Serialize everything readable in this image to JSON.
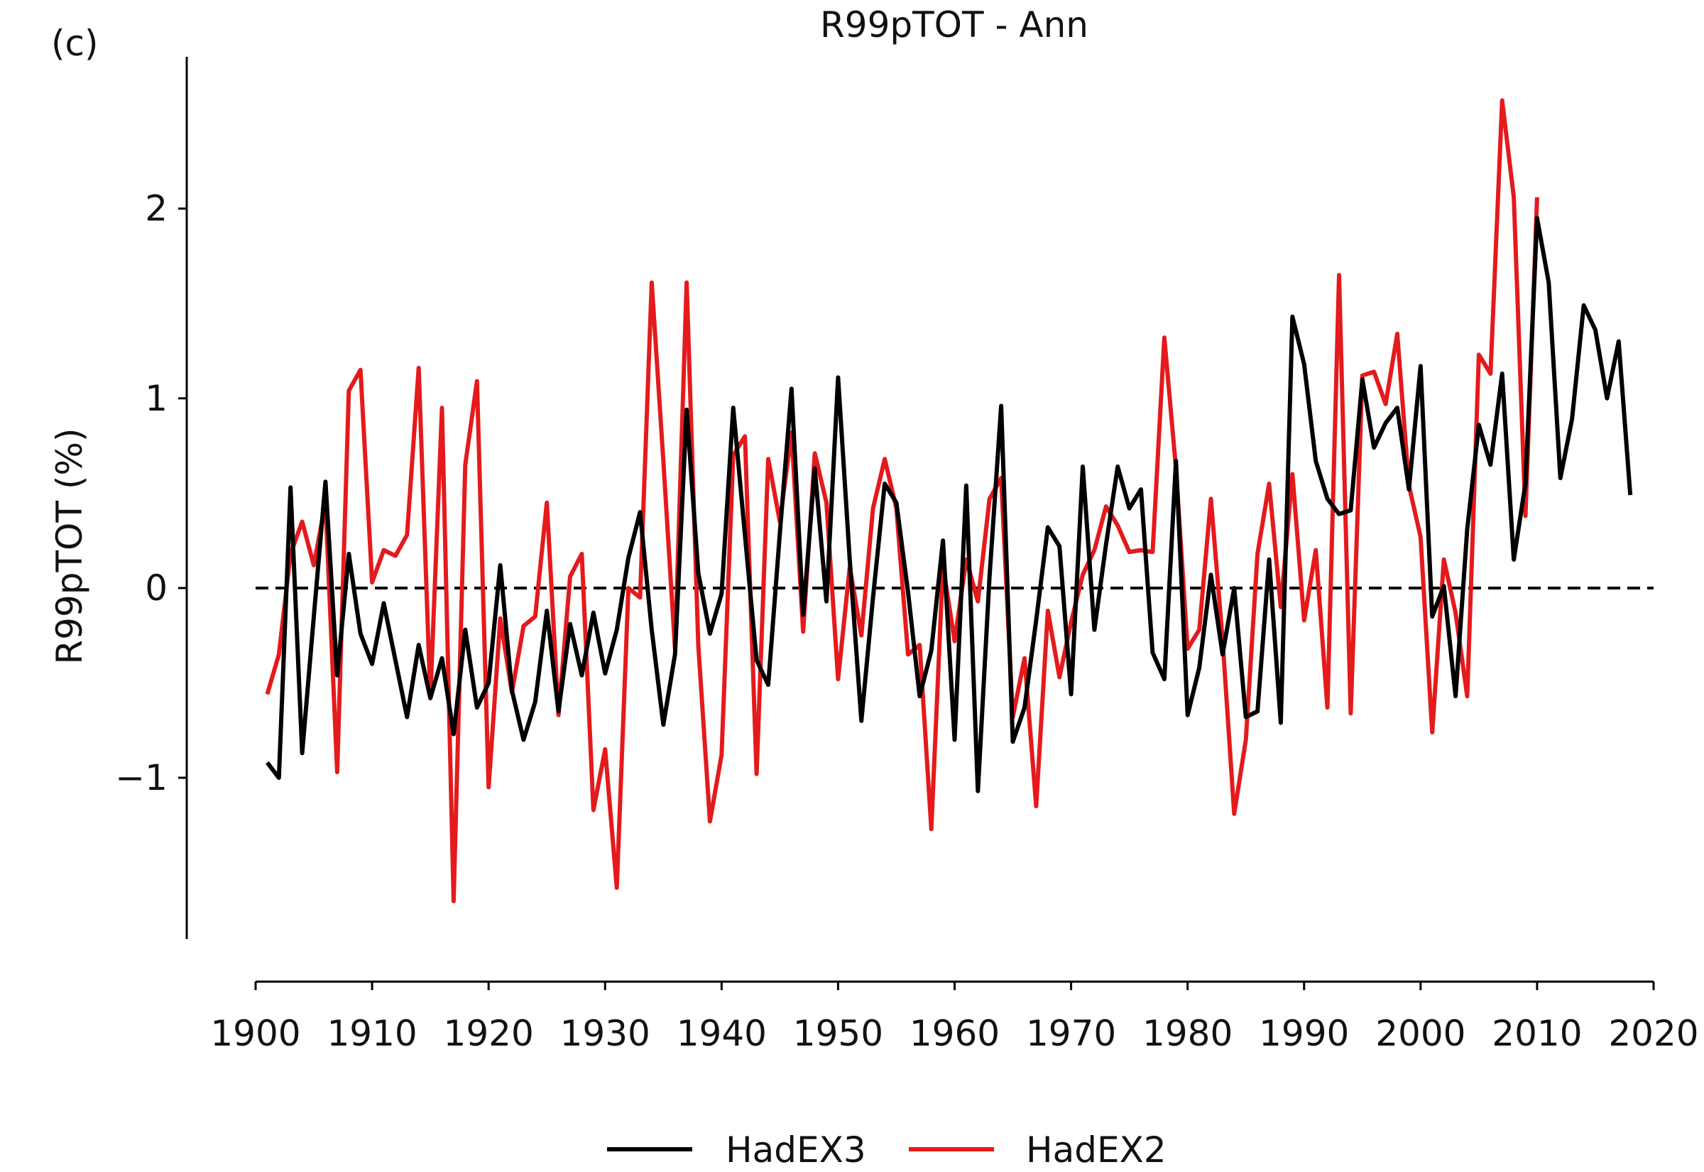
{
  "panel_label": "(c)",
  "chart_data": {
    "type": "line",
    "title": "R99pTOT - Ann",
    "xlabel": "",
    "ylabel": "R99pTOT (%)",
    "xlim": [
      1900,
      2020
    ],
    "ylim": [
      -1.85,
      2.8
    ],
    "xticks": [
      1900,
      1910,
      1920,
      1930,
      1940,
      1950,
      1960,
      1970,
      1980,
      1990,
      2000,
      2010,
      2020
    ],
    "yticks": [
      -1,
      0,
      1,
      2
    ],
    "ytick_labels": [
      "−1",
      "0",
      "1",
      "2"
    ],
    "grid": false,
    "reference_line": {
      "y": 0,
      "style": "dashed",
      "color": "#000000"
    },
    "legend_position": "bottom-center",
    "series": [
      {
        "name": "HadEX3",
        "color": "#000000",
        "x": [
          1901,
          1902,
          1903,
          1904,
          1905,
          1906,
          1907,
          1908,
          1909,
          1910,
          1911,
          1912,
          1913,
          1914,
          1915,
          1916,
          1917,
          1918,
          1919,
          1920,
          1921,
          1922,
          1923,
          1924,
          1925,
          1926,
          1927,
          1928,
          1929,
          1930,
          1931,
          1932,
          1933,
          1934,
          1935,
          1936,
          1937,
          1938,
          1939,
          1940,
          1941,
          1942,
          1943,
          1944,
          1945,
          1946,
          1947,
          1948,
          1949,
          1950,
          1951,
          1952,
          1953,
          1954,
          1955,
          1956,
          1957,
          1958,
          1959,
          1960,
          1961,
          1962,
          1963,
          1964,
          1965,
          1966,
          1967,
          1968,
          1969,
          1970,
          1971,
          1972,
          1973,
          1974,
          1975,
          1976,
          1977,
          1978,
          1979,
          1980,
          1981,
          1982,
          1983,
          1984,
          1985,
          1986,
          1987,
          1988,
          1989,
          1990,
          1991,
          1992,
          1993,
          1994,
          1995,
          1996,
          1997,
          1998,
          1999,
          2000,
          2001,
          2002,
          2003,
          2004,
          2005,
          2006,
          2007,
          2008,
          2009,
          2010,
          2011,
          2012,
          2013,
          2014,
          2015,
          2016,
          2017,
          2018
        ],
        "y": [
          -0.92,
          -1.0,
          0.53,
          -0.87,
          -0.15,
          0.56,
          -0.46,
          0.18,
          -0.24,
          -0.4,
          -0.08,
          -0.38,
          -0.68,
          -0.3,
          -0.58,
          -0.37,
          -0.77,
          -0.22,
          -0.63,
          -0.5,
          0.12,
          -0.54,
          -0.8,
          -0.6,
          -0.12,
          -0.65,
          -0.19,
          -0.46,
          -0.13,
          -0.45,
          -0.22,
          0.16,
          0.4,
          -0.22,
          -0.72,
          -0.35,
          0.94,
          0.08,
          -0.24,
          -0.03,
          0.95,
          0.28,
          -0.38,
          -0.51,
          0.29,
          1.05,
          -0.14,
          0.63,
          -0.07,
          1.11,
          0.15,
          -0.7,
          -0.05,
          0.55,
          0.45,
          -0.02,
          -0.57,
          -0.33,
          0.25,
          -0.8,
          0.54,
          -1.07,
          0.06,
          0.96,
          -0.81,
          -0.63,
          -0.17,
          0.32,
          0.22,
          -0.56,
          0.64,
          -0.22,
          0.23,
          0.64,
          0.42,
          0.52,
          -0.34,
          -0.48,
          0.67,
          -0.67,
          -0.42,
          0.07,
          -0.35,
          0.0,
          -0.68,
          -0.65,
          0.15,
          -0.71,
          1.43,
          1.18,
          0.67,
          0.47,
          0.39,
          0.41,
          1.1,
          0.74,
          0.87,
          0.95,
          0.52,
          1.17,
          -0.15,
          0.01,
          -0.57,
          0.31,
          0.86,
          0.65,
          1.13,
          0.15,
          0.55,
          1.95,
          1.61,
          0.58,
          0.89,
          1.49,
          1.36,
          1.0,
          1.3,
          0.49
        ]
      },
      {
        "name": "HadEX2",
        "color": "#e41a1c",
        "x": [
          1901,
          1902,
          1903,
          1904,
          1905,
          1906,
          1907,
          1908,
          1909,
          1910,
          1911,
          1912,
          1913,
          1914,
          1915,
          1916,
          1917,
          1918,
          1919,
          1920,
          1921,
          1922,
          1923,
          1924,
          1925,
          1926,
          1927,
          1928,
          1929,
          1930,
          1931,
          1932,
          1933,
          1934,
          1935,
          1936,
          1937,
          1938,
          1939,
          1940,
          1941,
          1942,
          1943,
          1944,
          1945,
          1946,
          1947,
          1948,
          1949,
          1950,
          1951,
          1952,
          1953,
          1954,
          1955,
          1956,
          1957,
          1958,
          1959,
          1960,
          1961,
          1962,
          1963,
          1964,
          1965,
          1966,
          1967,
          1968,
          1969,
          1970,
          1971,
          1972,
          1973,
          1974,
          1975,
          1976,
          1977,
          1978,
          1979,
          1980,
          1981,
          1982,
          1983,
          1984,
          1985,
          1986,
          1987,
          1988,
          1989,
          1990,
          1991,
          1992,
          1993,
          1994,
          1995,
          1996,
          1997,
          1998,
          1999,
          2000,
          2001,
          2002,
          2003,
          2004,
          2005,
          2006,
          2007,
          2008,
          2009,
          2010
        ],
        "y": [
          -0.56,
          -0.35,
          0.18,
          0.35,
          0.12,
          0.45,
          -0.97,
          1.04,
          1.15,
          0.03,
          0.2,
          0.17,
          0.28,
          1.16,
          -0.58,
          0.95,
          -1.65,
          0.65,
          1.09,
          -1.05,
          -0.16,
          -0.55,
          -0.2,
          -0.15,
          0.45,
          -0.67,
          0.06,
          0.18,
          -1.17,
          -0.85,
          -1.58,
          0.0,
          -0.05,
          1.61,
          0.67,
          -0.32,
          1.61,
          -0.3,
          -1.23,
          -0.88,
          0.7,
          0.8,
          -0.98,
          0.68,
          0.35,
          0.82,
          -0.23,
          0.71,
          0.45,
          -0.48,
          0.11,
          -0.25,
          0.42,
          0.68,
          0.42,
          -0.35,
          -0.3,
          -1.27,
          0.12,
          -0.28,
          0.15,
          -0.07,
          0.47,
          0.58,
          -0.68,
          -0.37,
          -1.15,
          -0.12,
          -0.47,
          -0.18,
          0.07,
          0.2,
          0.43,
          0.33,
          0.19,
          0.2,
          0.19,
          1.32,
          0.63,
          -0.32,
          -0.22,
          0.47,
          -0.27,
          -1.19,
          -0.8,
          0.18,
          0.55,
          -0.1,
          0.6,
          -0.17,
          0.2,
          -0.63,
          1.65,
          -0.66,
          1.12,
          1.14,
          0.97,
          1.34,
          0.54,
          0.27,
          -0.76,
          0.15,
          -0.13,
          -0.57,
          1.23,
          1.13,
          2.57,
          2.06,
          0.38,
          2.06
        ]
      }
    ]
  }
}
